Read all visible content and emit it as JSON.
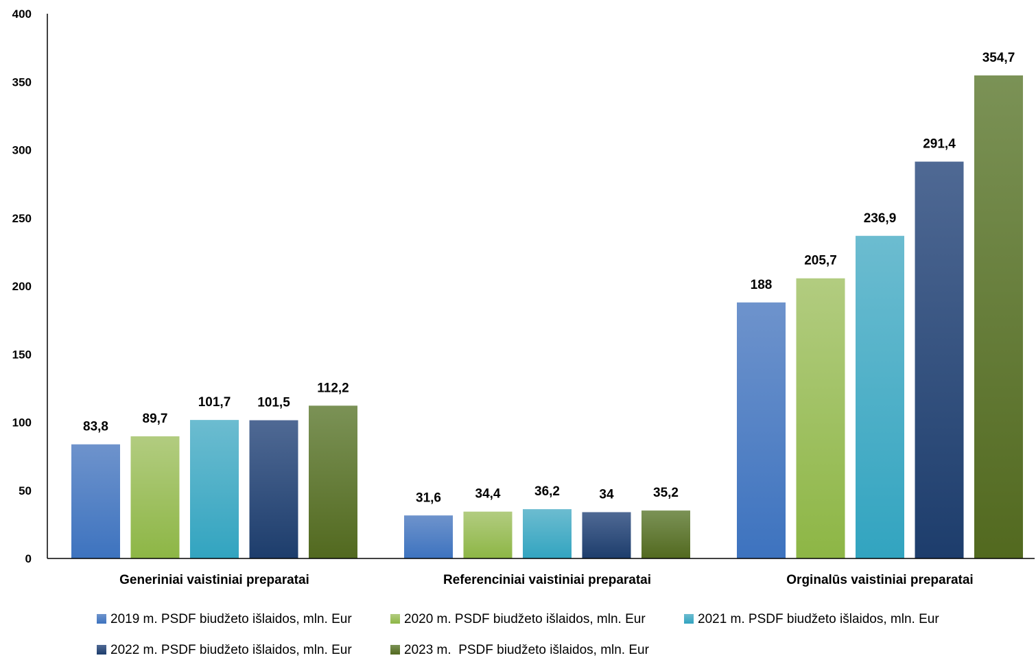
{
  "chart_data": {
    "type": "bar",
    "categories": [
      "Generiniai vaistiniai preparatai",
      "Referenciniai vaistiniai preparatai",
      "Orginalūs vaistiniai preparatai"
    ],
    "series": [
      {
        "name": "2019 m. PSDF biudžeto išlaidos, mln. Eur",
        "values": [
          83.8,
          31.6,
          188
        ],
        "labels": [
          "83,8",
          "31,6",
          "188"
        ],
        "color_top": "#6e93cc",
        "color_bottom": "#3d73bf"
      },
      {
        "name": "2020 m. PSDF biudžeto išlaidos, mln. Eur",
        "values": [
          89.7,
          34.4,
          205.7
        ],
        "labels": [
          "89,7",
          "34,4",
          "205,7"
        ],
        "color_top": "#b2cc80",
        "color_bottom": "#8db645"
      },
      {
        "name": "2021 m. PSDF biudžeto išlaidos, mln. Eur",
        "values": [
          101.7,
          36.2,
          236.9
        ],
        "labels": [
          "101,7",
          "36,2",
          "236,9"
        ],
        "color_top": "#6cbcd0",
        "color_bottom": "#32a4c0"
      },
      {
        "name": "2022 m. PSDF biudžeto išlaidos, mln. Eur",
        "values": [
          101.5,
          34,
          291.4
        ],
        "labels": [
          "101,5",
          "34",
          "291,4"
        ],
        "color_top": "#4f6994",
        "color_bottom": "#1d3d6c"
      },
      {
        "name": "2023 m.  PSDF biudžeto išlaidos, mln. Eur",
        "values": [
          112.2,
          35.2,
          354.7
        ],
        "labels": [
          "112,2",
          "35,2",
          "354,7"
        ],
        "color_top": "#7b9256",
        "color_bottom": "#52691f"
      }
    ],
    "yticks": [
      "0",
      "50",
      "100",
      "150",
      "200",
      "250",
      "300",
      "350",
      "400"
    ],
    "ylim": [
      0,
      400
    ],
    "grid": false,
    "legend_position": "bottom",
    "title": "",
    "xlabel": "",
    "ylabel": ""
  }
}
